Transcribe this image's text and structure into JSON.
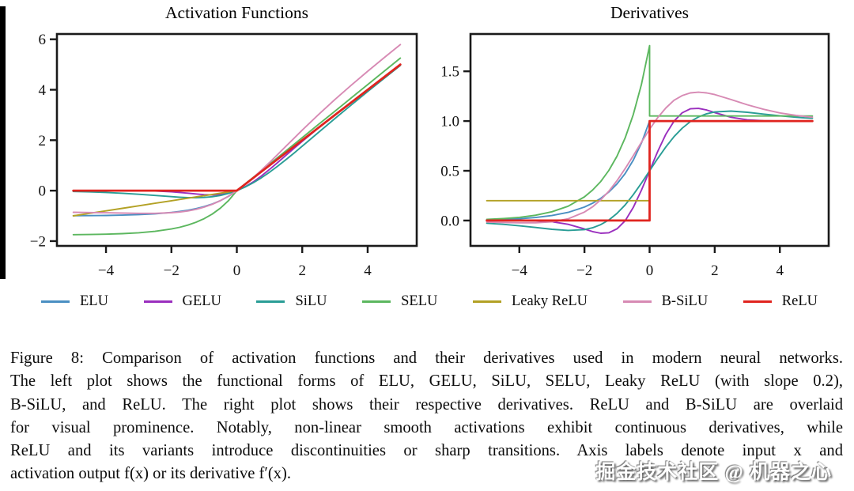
{
  "figure": {
    "label": "Figure 8"
  },
  "chart_data": [
    {
      "type": "line",
      "title": "Activation Functions",
      "xlabel": "",
      "ylabel": "",
      "xlim": [
        -5.5,
        5.5
      ],
      "ylim": [
        -2.19,
        6.21
      ],
      "grid": false,
      "legend_position": "below-figure",
      "xticks": [
        -4,
        -2,
        0,
        2,
        4
      ],
      "xtick_labels": [
        "−4",
        "−2",
        "0",
        "2",
        "4"
      ],
      "yticks": [
        -2,
        0,
        2,
        4,
        6
      ],
      "ytick_labels": [
        "−2",
        "0",
        "2",
        "4",
        "6"
      ],
      "x": [
        -5,
        -4.5,
        -4,
        -3.5,
        -3,
        -2.5,
        -2,
        -1.75,
        -1.5,
        -1.25,
        -1,
        -0.75,
        -0.5,
        -0.25,
        0,
        0,
        0.25,
        0.5,
        0.75,
        1,
        1.25,
        1.5,
        1.75,
        2,
        2.5,
        3,
        3.5,
        4,
        4.5,
        5
      ],
      "series": [
        {
          "name": "ELU",
          "color": "#4a8fc2",
          "line_width": 1.9,
          "y": [
            -0.993,
            -0.989,
            -0.982,
            -0.97,
            -0.95,
            -0.918,
            -0.865,
            -0.826,
            -0.777,
            -0.713,
            -0.632,
            -0.528,
            -0.393,
            -0.221,
            0,
            0,
            0.25,
            0.5,
            0.75,
            1,
            1.25,
            1.5,
            1.75,
            2,
            2.5,
            3,
            3.5,
            4,
            4.5,
            5
          ]
        },
        {
          "name": "GELU",
          "color": "#9a2fbe",
          "line_width": 1.9,
          "y": [
            0,
            0,
            0,
            -0.001,
            -0.004,
            -0.016,
            -0.046,
            -0.07,
            -0.1,
            -0.132,
            -0.159,
            -0.17,
            -0.154,
            -0.1,
            0,
            0,
            0.15,
            0.346,
            0.58,
            0.841,
            1.118,
            1.4,
            1.68,
            1.954,
            2.485,
            2.996,
            3.499,
            4,
            4.5,
            5
          ]
        },
        {
          "name": "SiLU",
          "color": "#2a9d96",
          "line_width": 1.9,
          "y": [
            -0.033,
            -0.049,
            -0.072,
            -0.103,
            -0.142,
            -0.19,
            -0.238,
            -0.259,
            -0.274,
            -0.278,
            -0.269,
            -0.241,
            -0.189,
            -0.109,
            0,
            0,
            0.141,
            0.311,
            0.509,
            0.731,
            0.972,
            1.226,
            1.491,
            1.762,
            2.31,
            2.858,
            3.397,
            3.928,
            4.45,
            4.967
          ]
        },
        {
          "name": "SELU",
          "color": "#5cb75f",
          "line_width": 1.9,
          "y": [
            -1.746,
            -1.739,
            -1.726,
            -1.705,
            -1.671,
            -1.614,
            -1.52,
            -1.453,
            -1.366,
            -1.254,
            -1.111,
            -0.928,
            -0.692,
            -0.389,
            0,
            0,
            0.263,
            0.525,
            0.788,
            1.051,
            1.313,
            1.576,
            1.839,
            2.101,
            2.627,
            3.152,
            3.677,
            4.203,
            4.728,
            5.254
          ]
        },
        {
          "name": "Leaky ReLU",
          "color": "#b3a125",
          "line_width": 1.9,
          "y": [
            -1,
            -0.9,
            -0.8,
            -0.7,
            -0.6,
            -0.5,
            -0.4,
            -0.35,
            -0.3,
            -0.25,
            -0.2,
            -0.15,
            -0.1,
            -0.05,
            0,
            0,
            0.25,
            0.5,
            0.75,
            1,
            1.25,
            1.5,
            1.75,
            2,
            2.5,
            3,
            3.5,
            4,
            4.5,
            5
          ]
        },
        {
          "name": "B-SiLU",
          "color": "#d78ab4",
          "line_width": 1.9,
          "y": [
            -0.857,
            -0.866,
            -0.877,
            -0.889,
            -0.898,
            -0.898,
            -0.874,
            -0.847,
            -0.804,
            -0.741,
            -0.655,
            -0.54,
            -0.393,
            -0.213,
            0,
            0,
            0.244,
            0.516,
            0.809,
            1.117,
            1.435,
            1.757,
            2.079,
            2.398,
            3.019,
            3.614,
            4.183,
            4.733,
            5.267,
            5.79
          ]
        },
        {
          "name": "ReLU",
          "color": "#e0241f",
          "line_width": 2.8,
          "y": [
            0,
            0,
            0,
            0,
            0,
            0,
            0,
            0,
            0,
            0,
            0,
            0,
            0,
            0,
            0,
            0,
            0.25,
            0.5,
            0.75,
            1,
            1.25,
            1.5,
            1.75,
            2,
            2.5,
            3,
            3.5,
            4,
            4.5,
            5
          ]
        }
      ]
    },
    {
      "type": "line",
      "title": "Derivatives",
      "xlabel": "",
      "ylabel": "",
      "xlim": [
        -5.5,
        5.5
      ],
      "ylim": [
        -0.255,
        1.875
      ],
      "grid": false,
      "legend_position": "below-figure",
      "xticks": [
        -4,
        -2,
        0,
        2,
        4
      ],
      "xtick_labels": [
        "−4",
        "−2",
        "0",
        "2",
        "4"
      ],
      "yticks": [
        0,
        0.5,
        1.0,
        1.5
      ],
      "ytick_labels": [
        "0.0",
        "0.5",
        "1.0",
        "1.5"
      ],
      "x": [
        -5,
        -4.5,
        -4,
        -3.5,
        -3,
        -2.5,
        -2,
        -1.75,
        -1.5,
        -1.25,
        -1,
        -0.75,
        -0.5,
        -0.25,
        0,
        0,
        0.25,
        0.5,
        0.75,
        1,
        1.25,
        1.5,
        1.75,
        2,
        2.5,
        3,
        3.5,
        4,
        4.5,
        5
      ],
      "series": [
        {
          "name": "ELU",
          "color": "#4a8fc2",
          "line_width": 1.9,
          "y": [
            0.007,
            0.011,
            0.018,
            0.03,
            0.05,
            0.082,
            0.135,
            0.174,
            0.223,
            0.287,
            0.368,
            0.472,
            0.607,
            0.779,
            1,
            1,
            1,
            1,
            1,
            1,
            1,
            1,
            1,
            1,
            1,
            1,
            1,
            1,
            1,
            1
          ]
        },
        {
          "name": "GELU",
          "color": "#9a2fbe",
          "line_width": 1.9,
          "y": [
            0,
            0,
            -0.001,
            -0.003,
            -0.012,
            -0.038,
            -0.085,
            -0.111,
            -0.128,
            -0.123,
            -0.083,
            -0.002,
            0.132,
            0.305,
            0.5,
            0.5,
            0.695,
            0.868,
            0.999,
            1.083,
            1.123,
            1.127,
            1.111,
            1.085,
            1.038,
            1.012,
            1.003,
            1,
            1,
            1
          ]
        },
        {
          "name": "SiLU",
          "color": "#2a9d96",
          "line_width": 1.9,
          "y": [
            -0.027,
            -0.038,
            -0.053,
            -0.07,
            -0.088,
            -0.099,
            -0.091,
            -0.073,
            -0.041,
            0.006,
            0.072,
            0.157,
            0.26,
            0.376,
            0.5,
            0.5,
            0.624,
            0.74,
            0.843,
            0.928,
            0.994,
            1.041,
            1.073,
            1.091,
            1.1,
            1.088,
            1.07,
            1.053,
            1.038,
            1.027
          ]
        },
        {
          "name": "SELU",
          "color": "#5cb75f",
          "line_width": 1.9,
          "y": [
            0.012,
            0.02,
            0.032,
            0.053,
            0.088,
            0.144,
            0.238,
            0.306,
            0.392,
            0.504,
            0.647,
            0.831,
            1.066,
            1.369,
            1.758,
            1.051,
            1.051,
            1.051,
            1.051,
            1.051,
            1.051,
            1.051,
            1.051,
            1.051,
            1.051,
            1.051,
            1.051,
            1.051,
            1.051,
            1.051
          ]
        },
        {
          "name": "Leaky ReLU",
          "color": "#b3a125",
          "line_width": 1.9,
          "y": [
            0.2,
            0.2,
            0.2,
            0.2,
            0.2,
            0.2,
            0.2,
            0.2,
            0.2,
            0.2,
            0.2,
            0.2,
            0.2,
            0.2,
            0.2,
            1,
            1,
            1,
            1,
            1,
            1,
            1,
            1,
            1,
            1,
            1,
            1,
            1,
            1,
            1
          ]
        },
        {
          "name": "B-SiLU",
          "color": "#d78ab4",
          "line_width": 1.9,
          "y": [
            -0.015,
            -0.02,
            -0.023,
            -0.023,
            -0.013,
            0.018,
            0.085,
            0.138,
            0.208,
            0.295,
            0.401,
            0.522,
            0.652,
            0.787,
            0.918,
            0.918,
            1.035,
            1.132,
            1.209,
            1.256,
            1.283,
            1.29,
            1.283,
            1.266,
            1.216,
            1.164,
            1.118,
            1.082,
            1.056,
            1.038
          ]
        },
        {
          "name": "ReLU",
          "color": "#e0241f",
          "line_width": 2.8,
          "y": [
            0,
            0,
            0,
            0,
            0,
            0,
            0,
            0,
            0,
            0,
            0,
            0,
            0,
            0,
            0,
            1,
            1,
            1,
            1,
            1,
            1,
            1,
            1,
            1,
            1,
            1,
            1,
            1,
            1,
            1
          ]
        }
      ]
    }
  ],
  "legend": {
    "items": [
      {
        "label": "ELU",
        "color": "#4a8fc2"
      },
      {
        "label": "GELU",
        "color": "#9a2fbe"
      },
      {
        "label": "SiLU",
        "color": "#2a9d96"
      },
      {
        "label": "SELU",
        "color": "#5cb75f"
      },
      {
        "label": "Leaky ReLU",
        "color": "#b3a125"
      },
      {
        "label": "B-SiLU",
        "color": "#d78ab4"
      },
      {
        "label": "ReLU",
        "color": "#e0241f"
      }
    ]
  },
  "caption": {
    "lines": [
      "Figure 8: Comparison of activation functions and their derivatives used in modern neural networks.",
      "The left plot shows the functional forms of ELU, GELU, SiLU, SELU, Leaky ReLU (with slope 0.2),",
      "B-SiLU, and ReLU. The right plot shows their respective derivatives. ReLU and B-SiLU are overlaid",
      "for visual prominence. Notably, non-linear smooth activations exhibit continuous derivatives, while",
      "ReLU and its variants introduce discontinuities or sharp transitions. Axis labels denote input x and",
      "activation output f(x) or its derivative f′(x)."
    ]
  },
  "watermark": {
    "text": "掘金技术社区 @ 机器之心"
  }
}
